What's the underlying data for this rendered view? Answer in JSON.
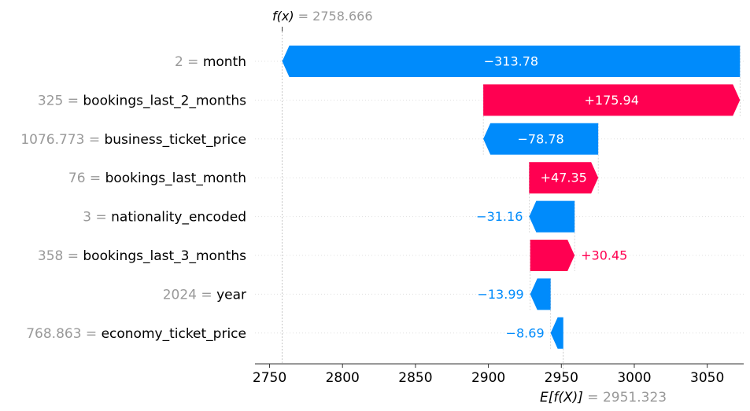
{
  "chart_data": {
    "type": "waterfall",
    "base_value": 2951.323,
    "output_value": 2758.666,
    "fx_label": "f(x)",
    "fx_value_text": "2758.666",
    "ex_label": "E[f(X)]",
    "ex_value_text": "2951.323",
    "xlim": [
      2740,
      3075
    ],
    "xticks": [
      2750,
      2800,
      2850,
      2900,
      2950,
      3000,
      3050
    ],
    "colors": {
      "positive": "#ff0051",
      "negative": "#008bfb",
      "muted": "#999999"
    },
    "features": [
      {
        "value_text": "2",
        "name": "month",
        "contribution": -313.78,
        "label": "−313.78"
      },
      {
        "value_text": "325",
        "name": "bookings_last_2_months",
        "contribution": 175.94,
        "label": "+175.94"
      },
      {
        "value_text": "1076.773",
        "name": "business_ticket_price",
        "contribution": -78.78,
        "label": "−78.78"
      },
      {
        "value_text": "76",
        "name": "bookings_last_month",
        "contribution": 47.35,
        "label": "+47.35"
      },
      {
        "value_text": "3",
        "name": "nationality_encoded",
        "contribution": -31.16,
        "label": "−31.16"
      },
      {
        "value_text": "358",
        "name": "bookings_last_3_months",
        "contribution": 30.45,
        "label": "+30.45"
      },
      {
        "value_text": "2024",
        "name": "year",
        "contribution": -13.99,
        "label": "−13.99"
      },
      {
        "value_text": "768.863",
        "name": "economy_ticket_price",
        "contribution": -8.69,
        "label": "−8.69"
      }
    ]
  }
}
